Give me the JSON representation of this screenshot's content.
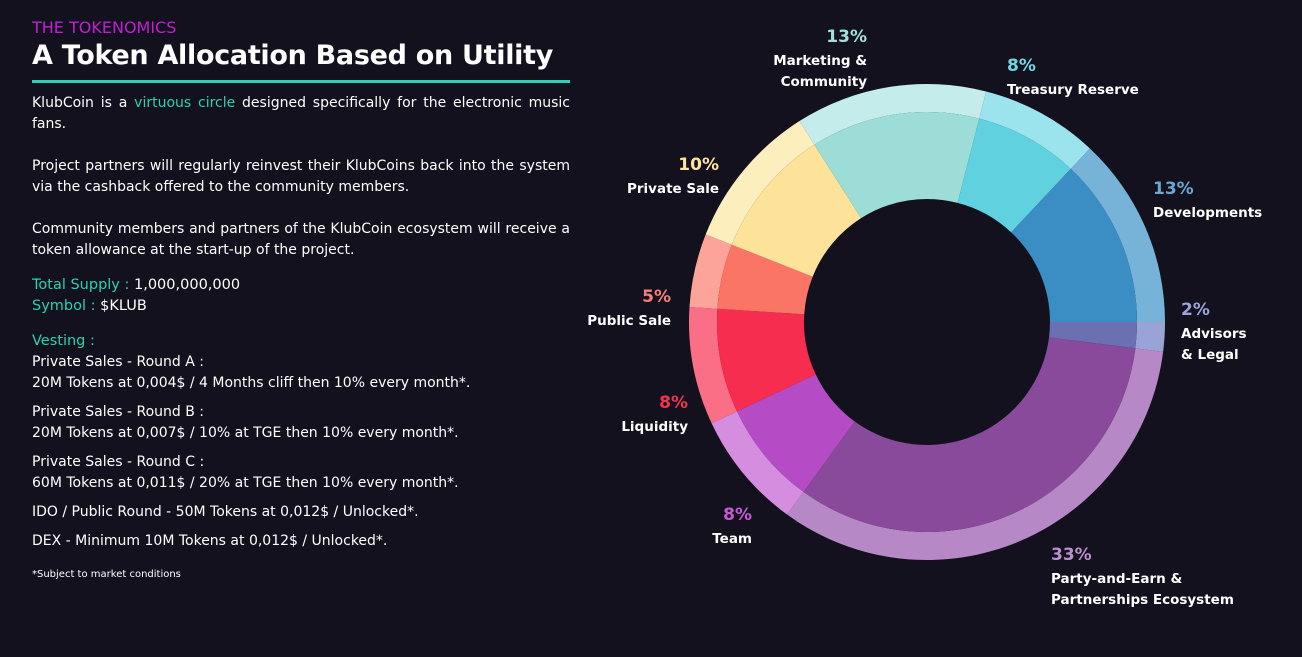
{
  "header": {
    "eyebrow": "THE TOKENOMICS",
    "title": "A Token Allocation Based on Utility"
  },
  "intro": {
    "p1_before": "KlubCoin is a ",
    "p1_highlight": "virtuous circle",
    "p1_after": " designed specifically for the electronic music fans.",
    "p2": "Project partners will regularly reinvest their KlubCoins back into the system via the cashback offered to the community members.",
    "p3": "Community members and partners of the KlubCoin ecosystem will receive a token allowance at the start-up of the project."
  },
  "supply": {
    "total_label": "Total Supply :",
    "total_value": " 1,000,000,000",
    "symbol_label": "Symbol :",
    "symbol_value": " $KLUB"
  },
  "vesting": {
    "heading": "Vesting :",
    "items": [
      {
        "line1": "Private Sales - Round A :",
        "line2": "20M Tokens at 0,004$ / 4 Months cliff then 10% every month*."
      },
      {
        "line1": "Private Sales - Round B :",
        "line2": "20M Tokens at 0,007$ / 10% at TGE then 10% every month*."
      },
      {
        "line1": "Private Sales - Round C :",
        "line2": "60M Tokens at 0,011$ / 20% at TGE then 10% every month*."
      },
      {
        "line1": "IDO / Public Round - 50M Tokens at 0,012$ / Unlocked*."
      },
      {
        "line1": "DEX - Minimum 10M Tokens at 0,012$ / Unlocked*."
      }
    ]
  },
  "footnote": "*Subject to market conditions",
  "chart_data": {
    "type": "pie",
    "variant": "donut",
    "title": "",
    "unit": "%",
    "start_angle_deg": 0,
    "direction": "clockwise",
    "slices": [
      {
        "key": "advisors",
        "name_lines": [
          "Advisors",
          "& Legal"
        ],
        "value": 2,
        "label": "2%",
        "color": "#6b70b2",
        "outer": "#9aa3d6",
        "label_color": "#9aa6d8"
      },
      {
        "key": "party",
        "name_lines": [
          "Party-and-Earn &",
          "Partnerships Ecosystem"
        ],
        "value": 33,
        "label": "33%",
        "color": "#8a4a9b",
        "outer": "#b689c6",
        "label_color": "#b890cf"
      },
      {
        "key": "team",
        "name_lines": [
          "Team"
        ],
        "value": 8,
        "label": "8%",
        "color": "#b54cc6",
        "outer": "#d58de0",
        "label_color": "#c65ad4"
      },
      {
        "key": "liquidity",
        "name_lines": [
          "Liquidity"
        ],
        "value": 8,
        "label": "8%",
        "color": "#f72d50",
        "outer": "#fb6f86",
        "label_color": "#f0354f"
      },
      {
        "key": "public",
        "name_lines": [
          "Public Sale"
        ],
        "value": 5,
        "label": "5%",
        "color": "#fb7566",
        "outer": "#fca39a",
        "label_color": "#f57f7a"
      },
      {
        "key": "private",
        "name_lines": [
          "Private Sale"
        ],
        "value": 10,
        "label": "10%",
        "color": "#fde29a",
        "outer": "#fdeebe",
        "label_color": "#fde49f"
      },
      {
        "key": "marketing",
        "name_lines": [
          "Marketing &",
          "Community"
        ],
        "value": 13,
        "label": "13%",
        "color": "#9dddd8",
        "outer": "#c4ecea",
        "label_color": "#a3e0db"
      },
      {
        "key": "treasury",
        "name_lines": [
          "Treasury Reserve"
        ],
        "value": 8,
        "label": "8%",
        "color": "#5fd1df",
        "outer": "#9be4ed",
        "label_color": "#6fd7e4"
      },
      {
        "key": "developments",
        "name_lines": [
          "Developments"
        ],
        "value": 13,
        "label": "13%",
        "color": "#3b8ec4",
        "outer": "#77b3d8",
        "label_color": "#6aa8d3"
      }
    ]
  }
}
